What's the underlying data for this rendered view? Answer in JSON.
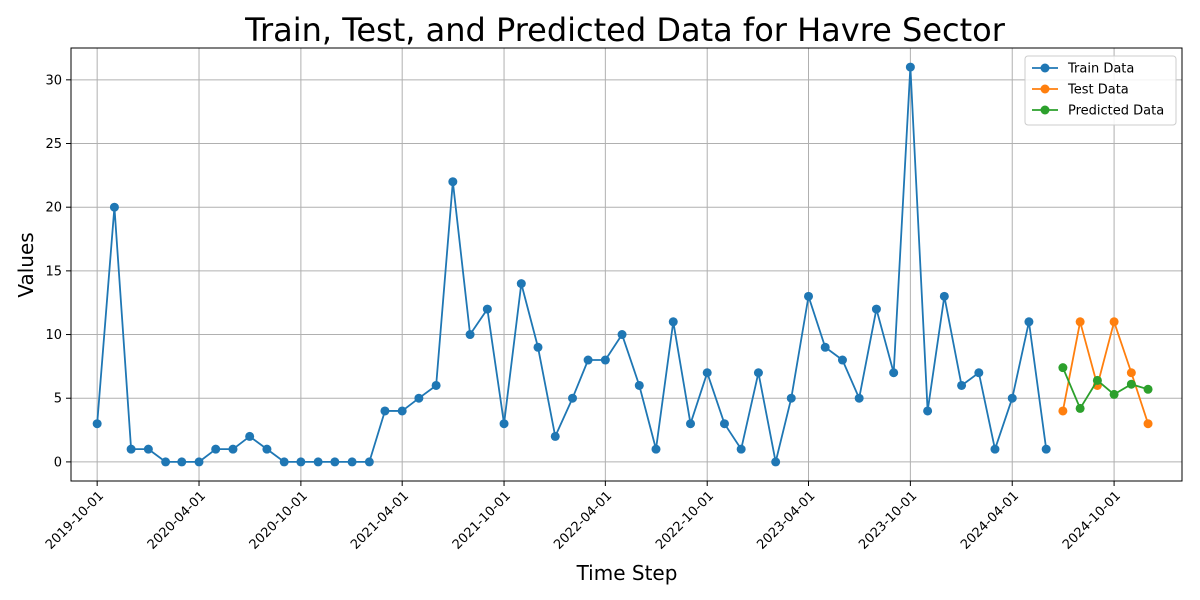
{
  "chart_data": {
    "type": "line",
    "title": "Train, Test, and Predicted Data for Havre Sector",
    "xlabel": "Time Step",
    "ylabel": "Values",
    "ylim": [
      -1.5,
      32.5
    ],
    "xlim": [
      "2019-08-15",
      "2025-01-31"
    ],
    "yticks": [
      0,
      5,
      10,
      15,
      20,
      25,
      30
    ],
    "xticks": [
      "2019-10-01",
      "2020-04-01",
      "2020-10-01",
      "2021-04-01",
      "2021-10-01",
      "2022-04-01",
      "2022-10-01",
      "2023-04-01",
      "2023-10-01",
      "2024-04-01",
      "2024-10-01"
    ],
    "grid": true,
    "legend_position": "top-right",
    "series": [
      {
        "name": "Train Data",
        "color": "#1f77b4",
        "marker": "circle",
        "x": [
          "2019-10-01",
          "2019-11-01",
          "2019-12-01",
          "2020-01-01",
          "2020-02-01",
          "2020-03-01",
          "2020-04-01",
          "2020-05-01",
          "2020-06-01",
          "2020-07-01",
          "2020-08-01",
          "2020-09-01",
          "2020-10-01",
          "2020-11-01",
          "2020-12-01",
          "2021-01-01",
          "2021-02-01",
          "2021-03-01",
          "2021-04-01",
          "2021-05-01",
          "2021-06-01",
          "2021-07-01",
          "2021-08-01",
          "2021-09-01",
          "2021-10-01",
          "2021-11-01",
          "2021-12-01",
          "2022-01-01",
          "2022-02-01",
          "2022-03-01",
          "2022-04-01",
          "2022-05-01",
          "2022-06-01",
          "2022-07-01",
          "2022-08-01",
          "2022-09-01",
          "2022-10-01",
          "2022-11-01",
          "2022-12-01",
          "2023-01-01",
          "2023-02-01",
          "2023-03-01",
          "2023-04-01",
          "2023-05-01",
          "2023-06-01",
          "2023-07-01",
          "2023-08-01",
          "2023-09-01",
          "2023-10-01",
          "2023-11-01",
          "2023-12-01",
          "2024-01-01",
          "2024-02-01",
          "2024-03-01",
          "2024-04-01",
          "2024-05-01",
          "2024-06-01"
        ],
        "values": [
          3,
          20,
          1,
          1,
          0,
          0,
          0,
          1,
          1,
          2,
          1,
          0,
          0,
          0,
          0,
          0,
          0,
          4,
          4,
          5,
          6,
          22,
          10,
          12,
          3,
          14,
          9,
          2,
          5,
          8,
          8,
          10,
          6,
          1,
          11,
          3,
          7,
          3,
          1,
          7,
          0,
          5,
          13,
          9,
          8,
          5,
          12,
          7,
          31,
          4,
          13,
          6,
          7,
          1,
          5,
          11,
          1
        ]
      },
      {
        "name": "Test Data",
        "color": "#ff7f0e",
        "marker": "circle",
        "x": [
          "2024-07-01",
          "2024-08-01",
          "2024-09-01",
          "2024-10-01",
          "2024-11-01",
          "2024-12-01"
        ],
        "values": [
          4,
          11,
          6,
          11,
          7,
          3
        ]
      },
      {
        "name": "Predicted Data",
        "color": "#2ca02c",
        "marker": "circle",
        "x": [
          "2024-07-01",
          "2024-08-01",
          "2024-09-01",
          "2024-10-01",
          "2024-11-01",
          "2024-12-01"
        ],
        "values": [
          7.4,
          4.2,
          6.4,
          5.3,
          6.1,
          5.7
        ]
      }
    ]
  }
}
